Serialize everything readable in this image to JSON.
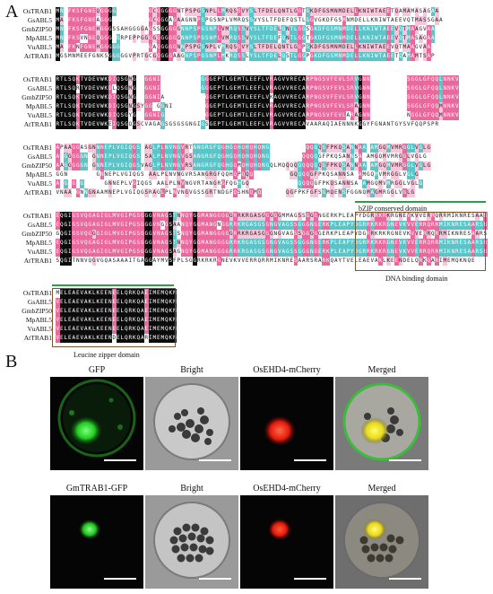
{
  "panel_a": {
    "letter": "A",
    "sequence_names": [
      "OsTRAB1",
      "GsABL5",
      "GmbZIP50",
      "MpABL5",
      "VuABL5",
      "AtTRAB1"
    ],
    "blocks": [
      {
        "sequences": [
          "MN.FKSFGNEQGGGG........GCGGGGGNTPSPGSNPLLMRQSSVYSLTFDELQNTLGGTGKDFGSMNMDELLKNIWTAEETQAMAMASAGAA",
          "MA.FKSFGNEAGGG.........GCGGGAGAAGNNPSPGSNPLVMRQSSVYSLTFDEFQSTLGGVGKDFGSMNMDELLKNIWTAEEVQTMASSGAA",
          "MN.FKSFGNEHGGGSSAHGGGGAGSSGGGGGNNPSPGSNPLVMRQSSVYSLTFDELQNTLGGSGKDFGSMNMDELLKNIWTAEEVQTMAAGVAA",
          "MN.FKSVNNEQGGG.GRPEPPGGGGGGGGGGNNPSPGSNPLVMRQSSVYSLTFDEFQNTLGGTGKDFGSMNMDELLKNIWTAEEVQTMASAGAA",
          "MA.FKNFGNEHGGGGG.......GAGGGGGNNPSPGSNPLVMRQSSVYSLTFDELQNTLGGPGKDFGSMNMDELLKNIWTAEEVQTMAAGVAA",
          "MGSMNMEEFGNKSGGGGGVPRTGCGGGGGAAGNPSPGSNPLMKRQSSLYSLTFDELQSTLGGPGKDFGSMNMDELLKNIWTAEETQAMAMTSAP"
        ]
      },
      {
        "sequences": [
          "RTLSQKTVDEVWKDIQSGMG..GGNI..........GGGEPTLGEMTLEEFLVRAGVVRECARPNGSVFEVLSRVGNN.........SGGLGFQQLNNKV",
          "RTLSQRTVDEVWKDLQSGMG..GGNI..........GGGEPTLGEMTLEEFLVRAGVVRECARPNGSVFEVLSRVGNN.........SGGLGFQQLNNKV",
          "RTLSQKTVDEVWKDIQSGNG..GGNIA..........GGEPTLGEMTLEEFLVKAGVVRECARPNGSVFEVLSRVGNN.........SGGLGFQQLNNKV",
          "RTLSQKTVDEVWKDIQSGNGSYGG.GGNI........GGEPTLGEMTLEEFLVRAGVVRECARPNGSVFEVLSRAGNN.........SGGLGFQQMNNKV",
          "RTLSQKTVDEVWKDIQSGYG..GGNIG..........GGEPTLGEMTLEEFLVRAGVVRECARPNGSVFEVLARAGNN.........NGGLGFQQMNNKV",
          "RTLSQKTVDEVWKEIQSGQGSCVAGAGSGSGSGNGIGSGEPTLGEMTLEEFLVRAGVVRECAVAARAQIAENNNKGGYFGNANTGYSVFQQPSPR..."
        ]
      },
      {
        "sequences": [
          "APAAGGASGNNNEPLVGIQGS.AGLPLNVNGVRTANGRGFQGHGQHQHQHQNG.........QQQQGFPKQSANNAA.AMGQMVMRGGLVGLG",
          "A.GGGGGN.GNNEPLVGIQGS.SALPLNVNGVGSANGRGFQGHGQHQHQHQNG........QQQQGFPKQSANNSA.AMGQMVMRGGLVGLG",
          "AAGGGGGN.GNNEPLVGIQGSVAGLPLNVNGVRSANGRGFQGHGQMQHQHQNGQLMQQQQQQQQQQGFPKQSANNAA.AMGQMVMRGGLVGLG",
          "GGN.......GNNEPLVGIQGS.AALPLNVNGVRSANGRGFQQHQPQQQ.........GQQQQGFPKQSANNSA.AMGQMVMRGGLVGLG",
          "A.G.G.G.....GNNEPLVGIQGS.AALPLNVNGVRTANGRGFQGHGQ............QQQQGFPKQSANNSA.AMGQMVMRGGLVGLG",
          "VNAA.GNNGNAAMNEPLVGIQGSRAGLPLNVNGVGSSGRTNDGFQSHNQMQ......QGFPKFGFSGMQENSFGGNQMAGMRGGLVGLG"
        ]
      },
      {
        "sequences": [
          "EQGIGSVQGAGIGLMVGIPGSGGGVNAGSTNNQYGGMANGGGGGRRKRGASGGGGGMMAGSSGGGNGERKPLEAPYDGRRKRKRGNEVKVVERRQRRMIKNRESAARSRARKQAYT",
          "EQGIGSVQGAGIGLMVGIPGSGGGVNGGSAANQYGGMANGNGGRRKRGASGSGNGVAGSSGGGNGERKPLEAPYDGRRKRKRGNEVKVVERRQRRMIKNRESAARSRARKQAYT",
          "GQGIGSVQGGGIGLMVGIPGSGGGVNAGSTSNQYGGMANGGGGGRRKRGASGGGNGVAGSSGGGGGERKPLEAPYDGRRKRKRGNEVKVVERRQRRMIKNRESAARSRARKQAYT",
          "EQGIGSVQGAGIGLMVGIPGSGGGVNAGSTNNQYGGMANGGGGRRKRGASGSGNGVAGSSGGGNGERKPLEAPYDGRRKRKRGNEVKVVERRQRRMIKNRESAARSRARKQAYT",
          "EQGIGSVQGAGIGLMVGIPGSGGGVNAGSAGNQYGGMANGGGGRRKRGASGSGNGVAGSSGGGNGERKPLEAPYDGRRKRKRGNEVKVVERRQRRMIKNRESAARSRARKQAYT",
          "SQGITNNVQGVGQASAAAITGAGGAYMVSFPLSGGRKRKRGNEVKVVERRQRRMIKNRESAARSRARKQAYTVELEAEVAKLKEENDELQRKQARIMEMQKNQE"
        ]
      },
      {
        "sequences": [
          "MELEAEVAKLKEENEELQRKQAEIMEMQKNQETEMMNLQREVRRRRLRRTQTGP",
          "VELEAEVAKLKEENEELQRKQAEIMEMQKNQDTEMRNIQREVRRRRLRRTQTGP",
          "VELEAEVAKLKEENEELQRKQAEIMEMQKNQDTEMRNIQREVRRRRLRRTQTGP",
          "VELEAEVAKLKEENEELQRKQAEIMEMQKNQETEMRNLQREVRRRRLRRTQTGP",
          "VELEAEVAKLKEENEELQRKQAEIMEMQKNQETEMRNIQREVRRRRLRRTQTGP",
          "VELEAEVAKLKEENDELQRKQARIMEMQKNQETAEMRNLQGSPRKRLRRTQTGP"
        ]
      }
    ],
    "domains": {
      "bzip": "bZIP conserved domain",
      "dna": "DNA binding domain",
      "leucine": "Leucine zipper domain"
    },
    "colors": {
      "identical": "#0b0b0b",
      "high": "#e8699c",
      "medium": "#5cc3c7",
      "low": "#f7c6da",
      "domain_line": "#2e9e45",
      "domain_box": "#7a5630"
    }
  },
  "panel_b": {
    "letter": "B",
    "rows": [
      {
        "labels": [
          "GFP",
          "Bright",
          "OsEHD4-mCherry",
          "Merged"
        ]
      },
      {
        "labels": [
          "GmTRAB1-GFP",
          "Bright",
          "OsEHD4-mCherry",
          "Merged"
        ]
      }
    ]
  }
}
